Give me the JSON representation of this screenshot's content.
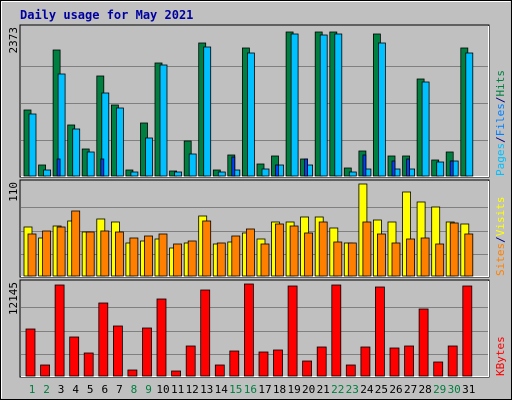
{
  "chart_data": {
    "type": "bar",
    "title": "Daily usage for May 2021",
    "x_tick_labels": [
      "1",
      "2",
      "3",
      "4",
      "5",
      "6",
      "7",
      "8",
      "9",
      "10",
      "11",
      "12",
      "13",
      "14",
      "15",
      "16",
      "17",
      "18",
      "19",
      "20",
      "21",
      "22",
      "23",
      "24",
      "25",
      "26",
      "27",
      "28",
      "29",
      "30",
      "31"
    ],
    "weekend_days": [
      1,
      2,
      8,
      9,
      15,
      16,
      22,
      23,
      29,
      30
    ],
    "grid": true,
    "panels": [
      {
        "id": "hits_files_pages",
        "ymax_label": "2373",
        "ymax": 2373,
        "side_label": [
          "Pages",
          "/",
          "Files",
          "/",
          "Hits"
        ],
        "side_label_colors": [
          "#00c0ff",
          "#000080",
          "#0080ff",
          "#000080",
          "#008040"
        ],
        "series": [
          {
            "name": "Hits",
            "color": "#008040",
            "values": [
              1060,
              170,
              2030,
              820,
              440,
              1620,
              1150,
              100,
              850,
              1820,
              80,
              560,
              2140,
              100,
              340,
              2070,
              190,
              330,
              2330,
              270,
              2330,
              2330,
              130,
              410,
              2290,
              320,
              320,
              1570,
              260,
              380,
              2060
            ]
          },
          {
            "name": "Files",
            "color": "#00c0ff",
            "values": [
              1000,
              90,
              1650,
              760,
              380,
              1340,
              1100,
              70,
              620,
              1790,
              60,
              360,
              2080,
              60,
              100,
              1980,
              110,
              180,
              2290,
              170,
              2270,
              2290,
              70,
              110,
              2150,
              110,
              110,
              1520,
              230,
              250,
              1980
            ]
          },
          {
            "name": "Pages",
            "color": "#0040ff",
            "values": [
              0,
              0,
              280,
              0,
              0,
              280,
              0,
              0,
              0,
              0,
              0,
              0,
              0,
              0,
              300,
              0,
              0,
              180,
              0,
              280,
              0,
              0,
              0,
              340,
              0,
              240,
              280,
              0,
              0,
              250,
              0
            ]
          }
        ]
      },
      {
        "id": "visits_sites",
        "ymax_label": "110",
        "ymax": 110,
        "side_label": [
          "Sites",
          "/",
          "Visits"
        ],
        "side_label_colors": [
          "#ff8000",
          "#000080",
          "#ffff00"
        ],
        "series": [
          {
            "name": "Visits",
            "color": "#ffff00",
            "values": [
              58,
              45,
              60,
              66,
              53,
              68,
              65,
              40,
              42,
              44,
              34,
              39,
              72,
              38,
              41,
              52,
              44,
              64,
              65,
              70,
              70,
              57,
              40,
              110,
              67,
              64,
              100,
              88,
              82,
              64,
              62
            ]
          },
          {
            "name": "Sites",
            "color": "#ff8000",
            "values": [
              50,
              54,
              59,
              78,
              53,
              54,
              53,
              46,
              48,
              50,
              38,
              42,
              66,
              40,
              48,
              56,
              38,
              62,
              60,
              51,
              64,
              41,
              40,
              65,
              50,
              39,
              44,
              46,
              38,
              63,
              50
            ]
          }
        ]
      },
      {
        "id": "kbytes",
        "ymax_label": "12145",
        "ymax": 12145,
        "side_label": [
          "KBytes"
        ],
        "side_label_colors": [
          "#ff0000"
        ],
        "series": [
          {
            "name": "KBytes",
            "color": "#ff0000",
            "values": [
              6200,
              1500,
              12050,
              5100,
              3100,
              9600,
              6600,
              800,
              6300,
              10200,
              700,
              4000,
              11300,
              1400,
              3300,
              12145,
              3200,
              3400,
              11850,
              2000,
              3800,
              11950,
              1500,
              3800,
              11750,
              3700,
              4000,
              8900,
              1800,
              4000,
              11850
            ]
          }
        ]
      }
    ]
  }
}
